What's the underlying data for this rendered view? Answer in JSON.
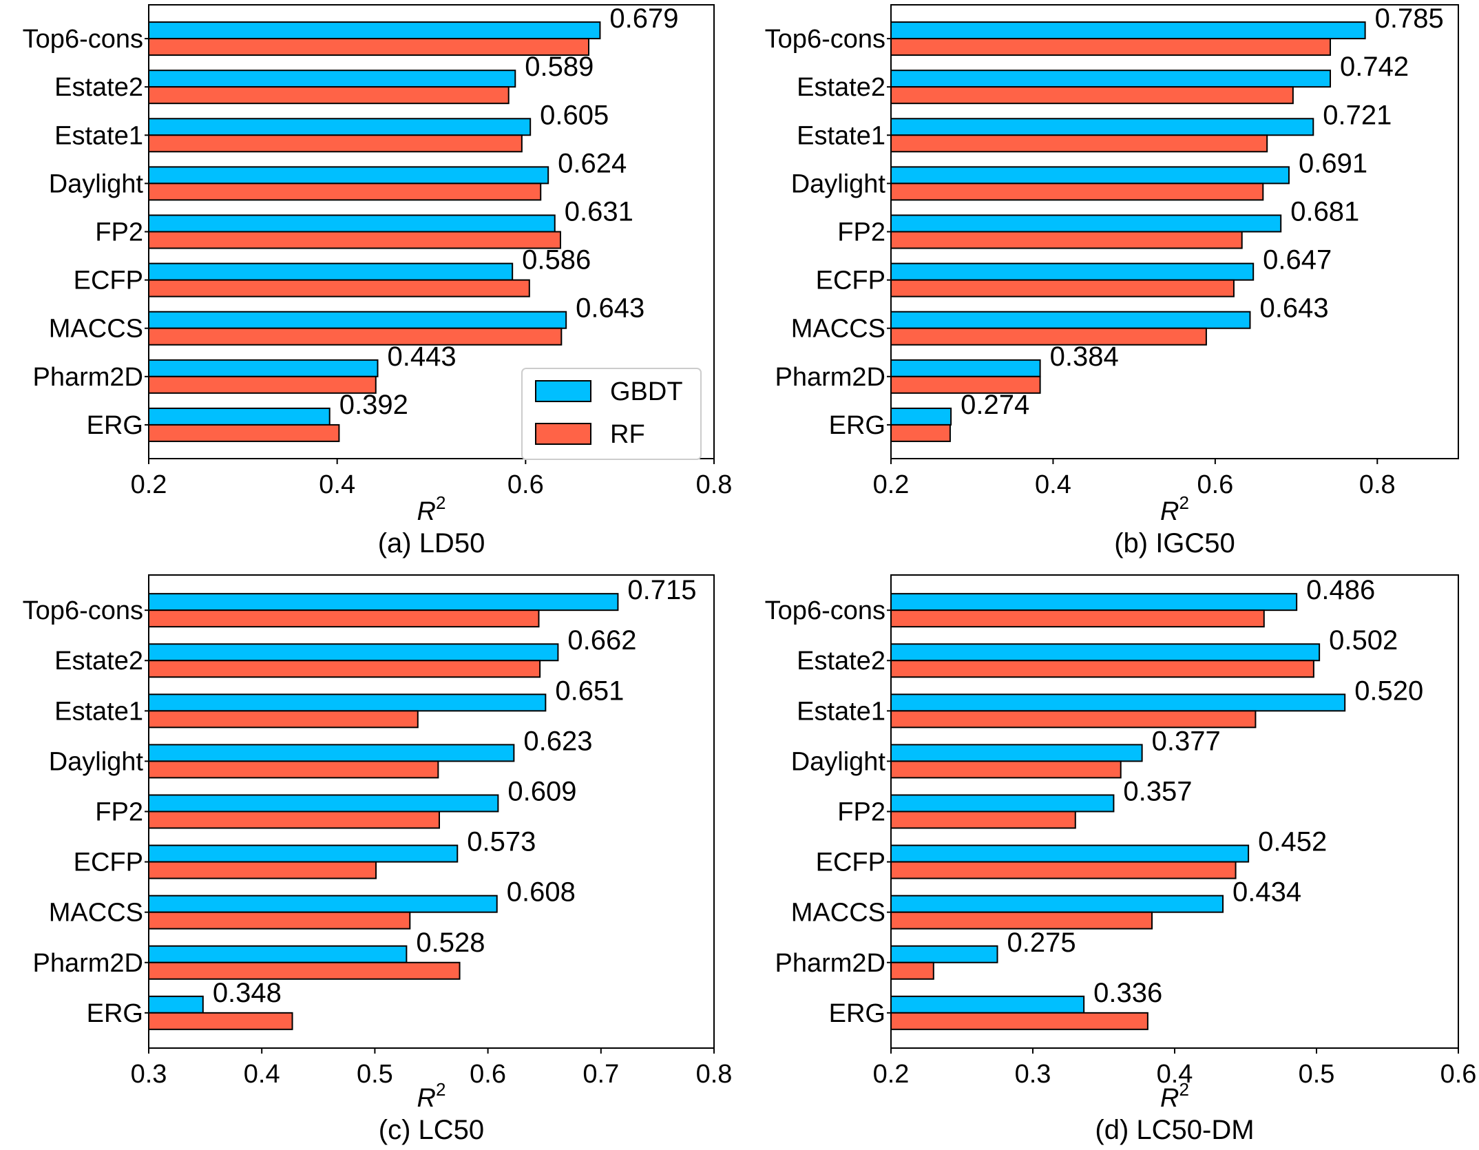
{
  "colors": {
    "gbdt": "#00bfff",
    "rf": "#ff6347",
    "edge": "#000000"
  },
  "legend": {
    "entries": [
      "GBDT",
      "RF"
    ],
    "placement": "lower-right"
  },
  "chart_data": [
    {
      "type": "bar",
      "orientation": "horizontal",
      "caption": "(a) LD50",
      "xlabel": "R",
      "xlabel_superscript": "2",
      "xlim": [
        0.2,
        0.8
      ],
      "xticks": [
        0.2,
        0.4,
        0.6,
        0.8
      ],
      "xtick_labels": [
        "0.2",
        "0.4",
        "0.6",
        "0.8"
      ],
      "categories": [
        "Top6-cons",
        "Estate2",
        "Estate1",
        "Daylight",
        "FP2",
        "ECFP",
        "MACCS",
        "Pharm2D",
        "ERG"
      ],
      "series": [
        {
          "name": "GBDT",
          "values": [
            0.679,
            0.589,
            0.605,
            0.624,
            0.631,
            0.586,
            0.643,
            0.443,
            0.392
          ]
        },
        {
          "name": "RF",
          "values": [
            0.667,
            0.582,
            0.596,
            0.616,
            0.637,
            0.604,
            0.638,
            0.441,
            0.402
          ]
        }
      ],
      "value_labels": [
        "0.679",
        "0.589",
        "0.605",
        "0.624",
        "0.631",
        "0.586",
        "0.643",
        "0.443",
        "0.392"
      ],
      "show_legend": true
    },
    {
      "type": "bar",
      "orientation": "horizontal",
      "caption": "(b) IGC50",
      "xlabel": "R",
      "xlabel_superscript": "2",
      "xlim": [
        0.2,
        0.9
      ],
      "xticks": [
        0.2,
        0.4,
        0.6,
        0.8
      ],
      "xtick_labels": [
        "0.2",
        "0.4",
        "0.6",
        "0.8"
      ],
      "categories": [
        "Top6-cons",
        "Estate2",
        "Estate1",
        "Daylight",
        "FP2",
        "ECFP",
        "MACCS",
        "Pharm2D",
        "ERG"
      ],
      "series": [
        {
          "name": "GBDT",
          "values": [
            0.785,
            0.742,
            0.721,
            0.691,
            0.681,
            0.647,
            0.643,
            0.384,
            0.274
          ]
        },
        {
          "name": "RF",
          "values": [
            0.742,
            0.696,
            0.664,
            0.659,
            0.633,
            0.623,
            0.589,
            0.384,
            0.273
          ]
        }
      ],
      "value_labels": [
        "0.785",
        "0.742",
        "0.721",
        "0.691",
        "0.681",
        "0.647",
        "0.643",
        "0.384",
        "0.274"
      ],
      "show_legend": false
    },
    {
      "type": "bar",
      "orientation": "horizontal",
      "caption": "(c) LC50",
      "xlabel": "R",
      "xlabel_superscript": "2",
      "xlim": [
        0.3,
        0.8
      ],
      "xticks": [
        0.3,
        0.4,
        0.5,
        0.6,
        0.7,
        0.8
      ],
      "xtick_labels": [
        "0.3",
        "0.4",
        "0.5",
        "0.6",
        "0.7",
        "0.8"
      ],
      "categories": [
        "Top6-cons",
        "Estate2",
        "Estate1",
        "Daylight",
        "FP2",
        "ECFP",
        "MACCS",
        "Pharm2D",
        "ERG"
      ],
      "series": [
        {
          "name": "GBDT",
          "values": [
            0.715,
            0.662,
            0.651,
            0.623,
            0.609,
            0.573,
            0.608,
            0.528,
            0.348
          ]
        },
        {
          "name": "RF",
          "values": [
            0.645,
            0.646,
            0.538,
            0.556,
            0.557,
            0.501,
            0.531,
            0.575,
            0.427
          ]
        }
      ],
      "value_labels": [
        "0.715",
        "0.662",
        "0.651",
        "0.623",
        "0.609",
        "0.573",
        "0.608",
        "0.528",
        "0.348"
      ],
      "show_legend": false
    },
    {
      "type": "bar",
      "orientation": "horizontal",
      "caption": "(d) LC50-DM",
      "xlabel": "R",
      "xlabel_superscript": "2",
      "xlim": [
        0.2,
        0.6
      ],
      "xticks": [
        0.2,
        0.3,
        0.4,
        0.5,
        0.6
      ],
      "xtick_labels": [
        "0.2",
        "0.3",
        "0.4",
        "0.5",
        "0.6"
      ],
      "categories": [
        "Top6-cons",
        "Estate2",
        "Estate1",
        "Daylight",
        "FP2",
        "ECFP",
        "MACCS",
        "Pharm2D",
        "ERG"
      ],
      "series": [
        {
          "name": "GBDT",
          "values": [
            0.486,
            0.502,
            0.52,
            0.377,
            0.357,
            0.452,
            0.434,
            0.275,
            0.336
          ]
        },
        {
          "name": "RF",
          "values": [
            0.463,
            0.498,
            0.457,
            0.362,
            0.33,
            0.443,
            0.384,
            0.23,
            0.381
          ]
        }
      ],
      "value_labels": [
        "0.486",
        "0.502",
        "0.520",
        "0.377",
        "0.357",
        "0.452",
        "0.434",
        "0.275",
        "0.336"
      ],
      "show_legend": false
    }
  ]
}
